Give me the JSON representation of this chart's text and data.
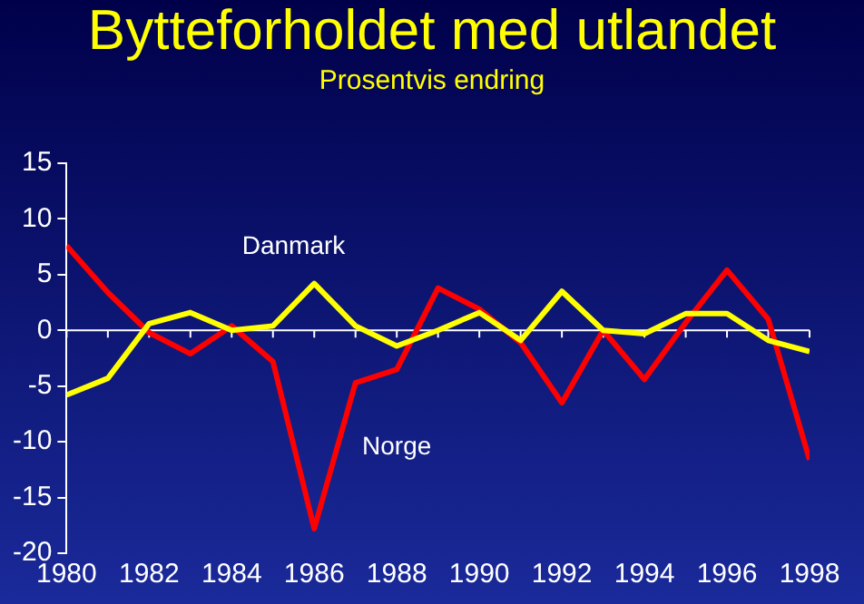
{
  "chart_data": {
    "type": "line",
    "title": "Bytteforholdet med utlandet",
    "subtitle": "Prosentvis endring",
    "x": [
      1980,
      1981,
      1982,
      1983,
      1984,
      1985,
      1986,
      1987,
      1988,
      1989,
      1990,
      1991,
      1992,
      1993,
      1994,
      1995,
      1996,
      1997,
      1998
    ],
    "series": [
      {
        "name": "Danmark",
        "color": "#ffff00",
        "values": [
          -5.8,
          -4.3,
          0.6,
          1.6,
          0,
          0.4,
          4.2,
          0.4,
          -1.4,
          0,
          1.6,
          -0.9,
          3.5,
          0,
          -0.3,
          1.5,
          1.5,
          -0.9,
          -1.9
        ]
      },
      {
        "name": "Norge",
        "color": "#ff0000",
        "values": [
          7.6,
          3.4,
          -0.2,
          -2.1,
          0.4,
          -2.8,
          -17.8,
          -4.7,
          -3.5,
          3.8,
          1.9,
          -1.1,
          -6.5,
          0,
          -4.4,
          0.7,
          5.4,
          1.0,
          -11.6
        ]
      }
    ],
    "xlim": [
      1980,
      1998
    ],
    "xticks": [
      1980,
      1982,
      1984,
      1986,
      1988,
      1990,
      1992,
      1994,
      1996,
      1998
    ],
    "ylim": [
      -20,
      15
    ],
    "yticks": [
      -20,
      -15,
      -10,
      -5,
      0,
      5,
      10,
      15
    ],
    "ref_lines": [
      {
        "axis": "y",
        "value": 0,
        "color": "#ffffff"
      }
    ],
    "grid": false,
    "legend": false,
    "marker": "none",
    "line_style": "solid"
  }
}
